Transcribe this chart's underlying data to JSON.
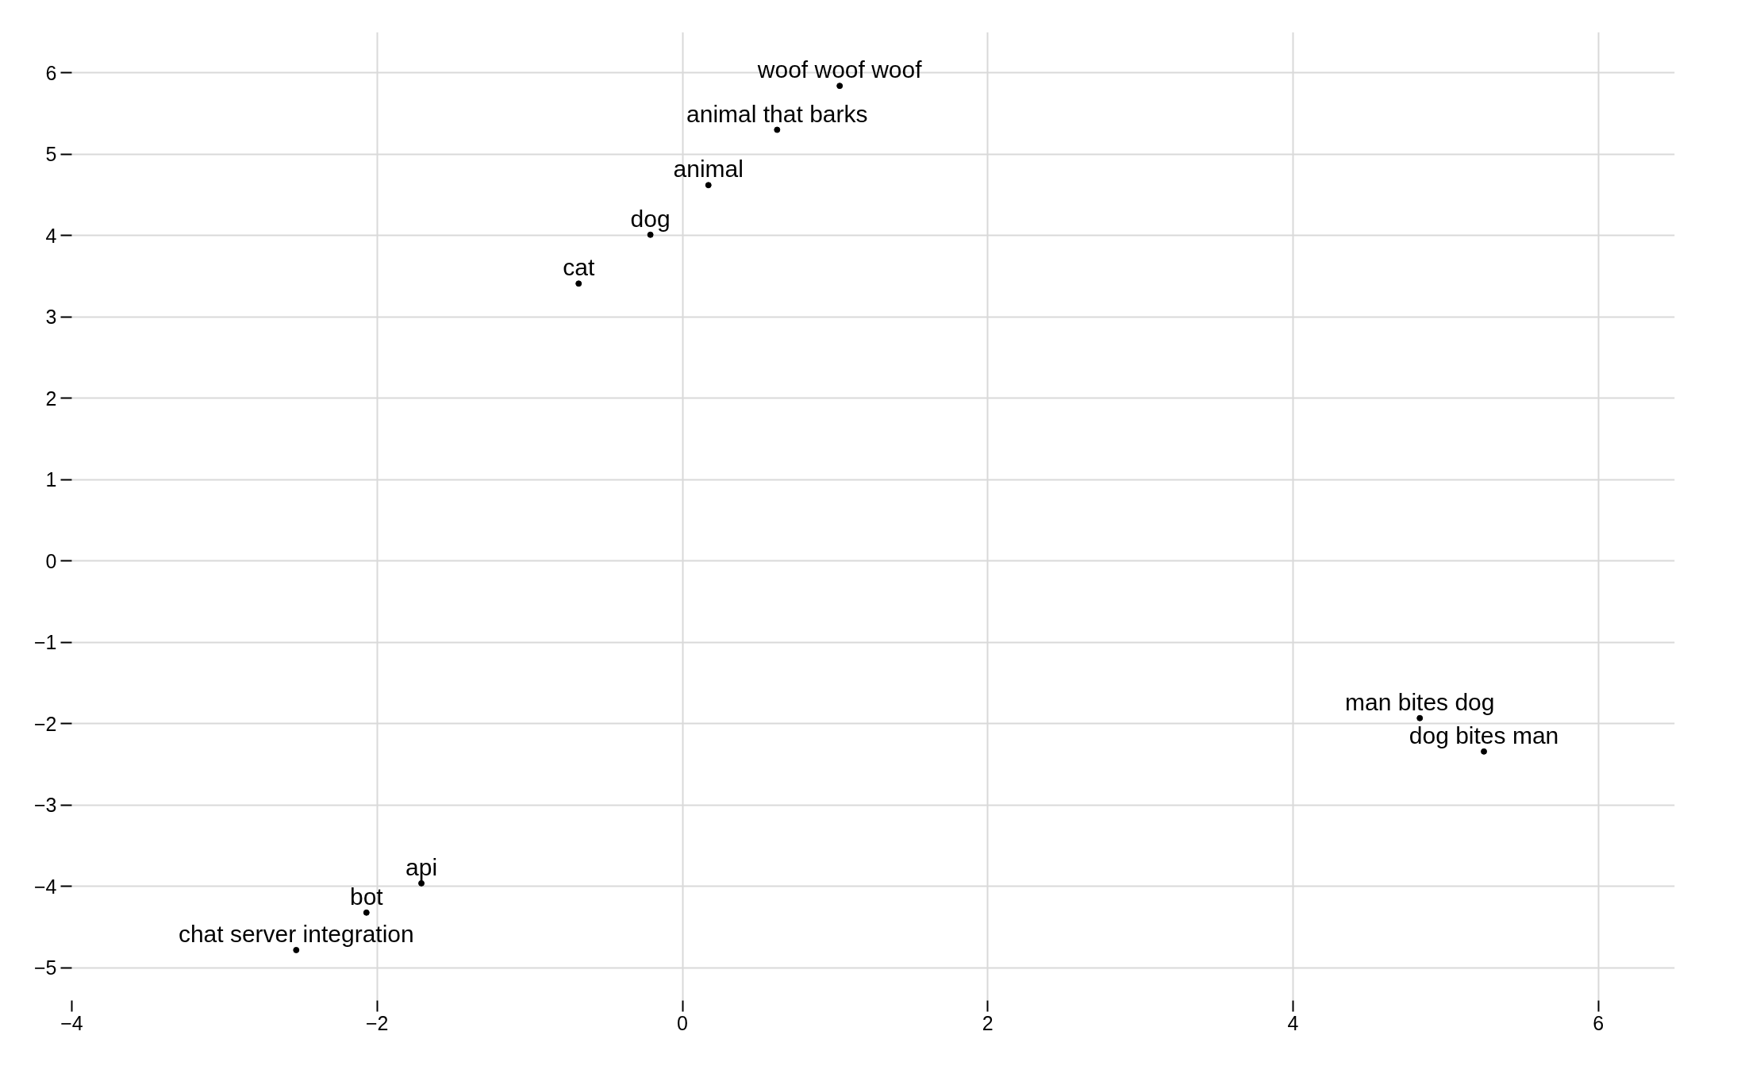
{
  "chart_data": {
    "type": "scatter",
    "marker": "circle",
    "grid": true,
    "xlim": [
      -4,
      6.5
    ],
    "ylim": [
      -5.4,
      6.5
    ],
    "xticks": [
      -4,
      -2,
      0,
      2,
      4,
      6
    ],
    "yticks": [
      -5,
      -4,
      -3,
      -2,
      -1,
      0,
      1,
      2,
      3,
      4,
      5,
      6
    ],
    "series": [
      {
        "color": "#000000",
        "x": [
          1.03,
          0.62,
          0.17,
          -0.21,
          -0.68,
          4.83,
          5.25,
          -1.71,
          -2.07,
          -2.53
        ],
        "values": [
          5.84,
          5.3,
          4.62,
          4.01,
          3.41,
          -1.93,
          -2.34,
          -3.96,
          -4.32,
          -4.78
        ]
      }
    ],
    "annotations": [
      {
        "text": "woof woof woof",
        "x": 1.03,
        "y": 5.84
      },
      {
        "text": "animal that barks",
        "x": 0.62,
        "y": 5.3
      },
      {
        "text": "animal",
        "x": 0.17,
        "y": 4.62
      },
      {
        "text": "dog",
        "x": -0.21,
        "y": 4.01
      },
      {
        "text": "cat",
        "x": -0.68,
        "y": 3.41
      },
      {
        "text": "man bites dog",
        "x": 4.83,
        "y": -1.93
      },
      {
        "text": "dog bites man",
        "x": 5.25,
        "y": -2.34
      },
      {
        "text": "api",
        "x": -1.71,
        "y": -3.96
      },
      {
        "text": "bot",
        "x": -2.07,
        "y": -4.32
      },
      {
        "text": "chat server integration",
        "x": -2.53,
        "y": -4.78
      }
    ]
  }
}
